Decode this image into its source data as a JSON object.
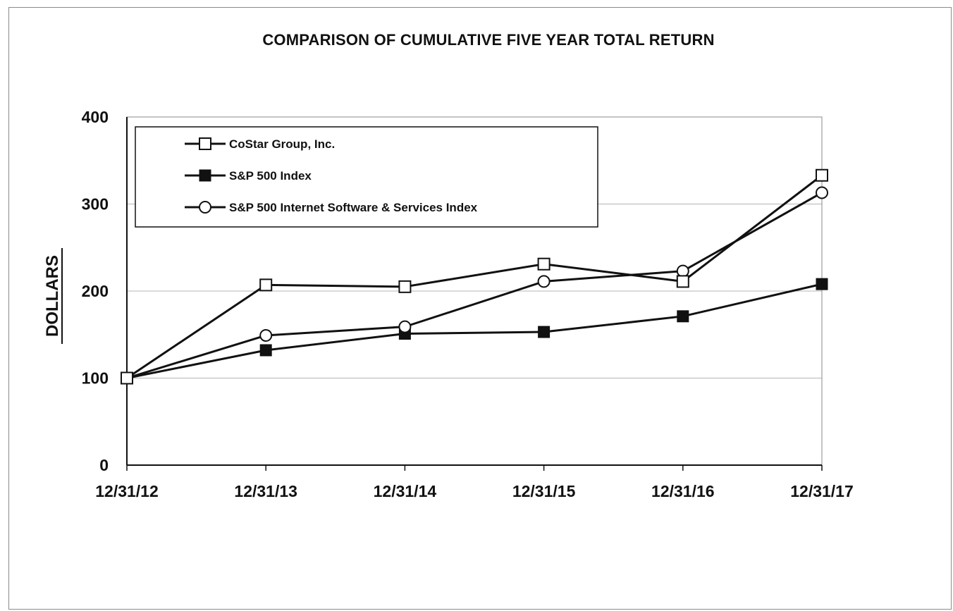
{
  "chart_data": {
    "type": "line",
    "title": "COMPARISON OF CUMULATIVE FIVE YEAR TOTAL RETURN",
    "ylabel": "DOLLARS",
    "xlabel": "",
    "categories": [
      "12/31/12",
      "12/31/13",
      "12/31/14",
      "12/31/15",
      "12/31/16",
      "12/31/17"
    ],
    "yticks": [
      0,
      100,
      200,
      300,
      400
    ],
    "ylim": [
      0,
      400
    ],
    "grid": "horizontal",
    "legend_position": "top-left",
    "series": [
      {
        "name": "CoStar Group, Inc.",
        "marker": "open-square",
        "values": [
          100,
          207,
          205,
          231,
          211,
          333
        ]
      },
      {
        "name": "S&P 500 Index",
        "marker": "filled-square",
        "values": [
          100,
          132,
          151,
          153,
          171,
          208
        ]
      },
      {
        "name": "S&P 500 Internet Software & Services Index",
        "marker": "open-circle",
        "values": [
          100,
          149,
          159,
          211,
          223,
          313
        ]
      }
    ],
    "colors": {
      "line": "#111111",
      "grid": "#b5b5b5",
      "frame": "#8a8a8a"
    }
  }
}
